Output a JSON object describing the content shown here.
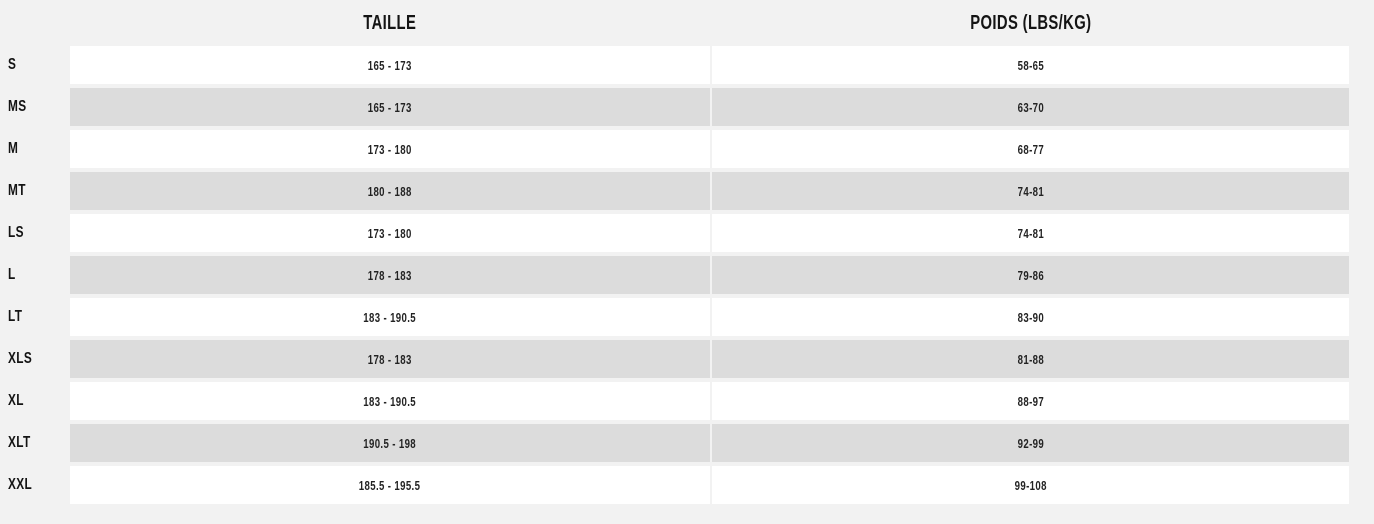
{
  "page": {
    "background_color": "#f2f2f2",
    "row_color": "#ffffff",
    "row_alt_color": "#dcdcdc",
    "text_color": "#1d1d1d"
  },
  "table": {
    "headers": [
      {
        "label": "TAILLE"
      },
      {
        "label": "POIDS (LBS/KG)"
      }
    ],
    "rows": [
      {
        "size": "S",
        "taille": "165 - 173",
        "poids": "58-65"
      },
      {
        "size": "MS",
        "taille": "165 - 173",
        "poids": "63-70"
      },
      {
        "size": "M",
        "taille": "173 - 180",
        "poids": "68-77"
      },
      {
        "size": "MT",
        "taille": "180 - 188",
        "poids": "74-81"
      },
      {
        "size": "LS",
        "taille": "173 - 180",
        "poids": "74-81"
      },
      {
        "size": "L",
        "taille": "178 - 183",
        "poids": "79-86"
      },
      {
        "size": "LT",
        "taille": "183 - 190.5",
        "poids": "83-90"
      },
      {
        "size": "XLS",
        "taille": "178 - 183",
        "poids": "81-88"
      },
      {
        "size": "XL",
        "taille": "183 - 190.5",
        "poids": "88-97"
      },
      {
        "size": "XLT",
        "taille": "190.5 - 198",
        "poids": "92-99"
      },
      {
        "size": "XXL",
        "taille": "185.5 - 195.5",
        "poids": "99-108"
      }
    ]
  }
}
